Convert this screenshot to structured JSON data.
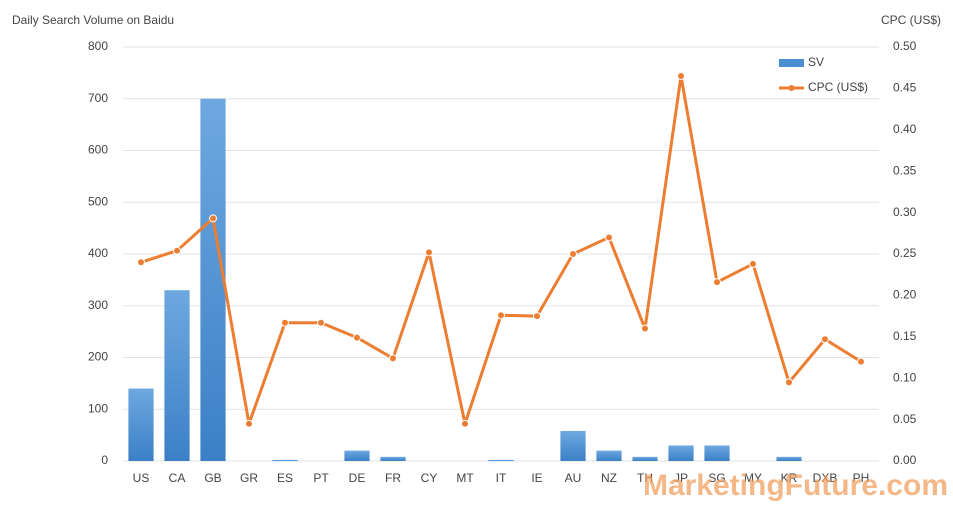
{
  "chart_data": {
    "type": "bar-line",
    "title": "Daily Search Volume on Baidu",
    "y2_title": "CPC (US$)",
    "watermark": "MarketingFuture.com",
    "categories": [
      "US",
      "CA",
      "GB",
      "GR",
      "ES",
      "PT",
      "DE",
      "FR",
      "CY",
      "MT",
      "IT",
      "IE",
      "AU",
      "NZ",
      "TH",
      "JP",
      "SG",
      "MY",
      "KR",
      "DXB",
      "PH"
    ],
    "series": [
      {
        "name": "SV",
        "type": "bar",
        "color": "#4a8fd2",
        "values": [
          140,
          330,
          700,
          0,
          2,
          0,
          20,
          8,
          0,
          0,
          2,
          0,
          58,
          20,
          8,
          30,
          30,
          0,
          8,
          0,
          0
        ]
      },
      {
        "name": "CPC (US$)",
        "type": "line",
        "axis": "y2",
        "color": "#ed7d31",
        "values": [
          0.24,
          0.254,
          0.293,
          0.045,
          0.167,
          0.167,
          0.149,
          0.124,
          0.252,
          0.045,
          0.176,
          0.175,
          0.25,
          0.27,
          0.16,
          0.465,
          0.216,
          0.238,
          0.095,
          0.147,
          0.12
        ]
      }
    ],
    "ylim": [
      0,
      800
    ],
    "yticks": [
      0,
      100,
      200,
      300,
      400,
      500,
      600,
      700,
      800
    ],
    "y2lim": [
      0,
      0.5
    ],
    "y2ticks": [
      {
        "value": 0,
        "label": "0.00"
      },
      {
        "value": 0.05,
        "label": "0.05"
      },
      {
        "value": 0.1,
        "label": "0.10"
      },
      {
        "value": 0.15,
        "label": "0.15"
      },
      {
        "value": 0.2,
        "label": "0.20"
      },
      {
        "value": 0.25,
        "label": "0.25"
      },
      {
        "value": 0.3,
        "label": "0.30"
      },
      {
        "value": 0.35,
        "label": "0.35"
      },
      {
        "value": 0.4,
        "label": "0.40"
      },
      {
        "value": 0.45,
        "label": "0.45"
      },
      {
        "value": 0.5,
        "label": "0.50"
      }
    ],
    "grid": true,
    "legend": "top-right"
  }
}
